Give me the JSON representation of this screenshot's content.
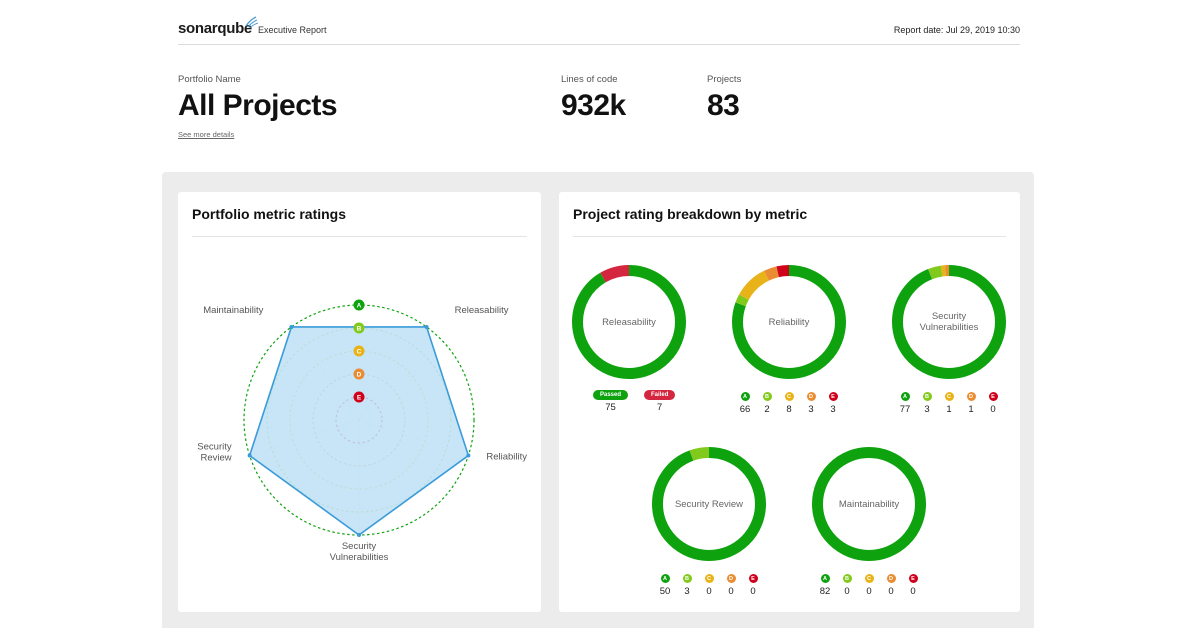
{
  "header": {
    "logo_text": "sonarqube",
    "logo_sub": "Executive Report",
    "report_date": "Report date: Jul 29, 2019 10:30"
  },
  "summary": {
    "portfolio_label": "Portfolio Name",
    "portfolio_name": "All Projects",
    "details_link": "See more details",
    "loc_label": "Lines of code",
    "loc_value": "932k",
    "projects_label": "Projects",
    "projects_value": "83"
  },
  "colors": {
    "A": "#0ea20e",
    "B": "#81c91a",
    "C": "#e8b318",
    "D": "#ea8c32",
    "E": "#d0021b",
    "passed": "#0ea20e",
    "failed": "#d4263e",
    "radar_fill": "#bde0f6",
    "radar_stroke": "#3a9bd9"
  },
  "radar_card": {
    "title": "Portfolio metric ratings",
    "grades": [
      "A",
      "B",
      "C",
      "D",
      "E"
    ],
    "axes": [
      "Releasability",
      "Reliability",
      "Security Vulnerabilities",
      "Security Review",
      "Maintainability"
    ],
    "axis_label_lines": {
      "Releasability": [
        "Releasability"
      ],
      "Reliability": [
        "Reliability"
      ],
      "Security Vulnerabilities": [
        "Security",
        "Vulnerabilities"
      ],
      "Security Review": [
        "Security",
        "Review"
      ],
      "Maintainability": [
        "Maintainability"
      ]
    },
    "ratings": {
      "Releasability": "A",
      "Reliability": "A",
      "Security Vulnerabilities": "A",
      "Security Review": "A",
      "Maintainability": "A"
    }
  },
  "breakdown_card": {
    "title": "Project rating breakdown by metric",
    "metrics": [
      {
        "key": "releasability",
        "label": "Releasability",
        "kind": "pass_fail",
        "counts": [
          {
            "grade": "Passed",
            "count": 75
          },
          {
            "grade": "Failed",
            "count": 7
          }
        ]
      },
      {
        "key": "reliability",
        "label": "Reliability",
        "kind": "grades",
        "counts": [
          {
            "grade": "A",
            "count": 66
          },
          {
            "grade": "B",
            "count": 2
          },
          {
            "grade": "C",
            "count": 8
          },
          {
            "grade": "D",
            "count": 3
          },
          {
            "grade": "E",
            "count": 3
          }
        ]
      },
      {
        "key": "security-vulnerabilities",
        "label": "Security Vulnerabilities",
        "kind": "grades",
        "counts": [
          {
            "grade": "A",
            "count": 77
          },
          {
            "grade": "B",
            "count": 3
          },
          {
            "grade": "C",
            "count": 1
          },
          {
            "grade": "D",
            "count": 1
          },
          {
            "grade": "E",
            "count": 0
          }
        ]
      },
      {
        "key": "security-review",
        "label": "Security Review",
        "kind": "grades",
        "counts": [
          {
            "grade": "A",
            "count": 50
          },
          {
            "grade": "B",
            "count": 3
          },
          {
            "grade": "C",
            "count": 0
          },
          {
            "grade": "D",
            "count": 0
          },
          {
            "grade": "E",
            "count": 0
          }
        ]
      },
      {
        "key": "maintainability",
        "label": "Maintainability",
        "kind": "grades",
        "counts": [
          {
            "grade": "A",
            "count": 82
          },
          {
            "grade": "B",
            "count": 0
          },
          {
            "grade": "C",
            "count": 0
          },
          {
            "grade": "D",
            "count": 0
          },
          {
            "grade": "E",
            "count": 0
          }
        ]
      }
    ]
  }
}
